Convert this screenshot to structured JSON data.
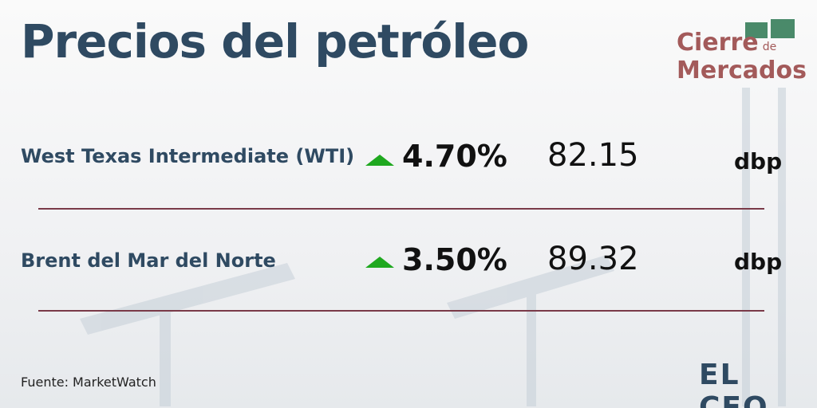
{
  "header": {
    "title": "Precios del petróleo",
    "logo": {
      "line1": "Cierre",
      "small": "de",
      "line2": "Mercados"
    }
  },
  "table": {
    "rows": [
      [
        "West Texas Intermediate (WTI)",
        "4.70%",
        "82.15",
        "dbp"
      ],
      [
        "Brent del Mar del Norte",
        "3.50%",
        "89.32",
        "dbp"
      ]
    ]
  },
  "footer": {
    "source": "Fuente: MarketWatch",
    "brand": "EL CEO"
  }
}
